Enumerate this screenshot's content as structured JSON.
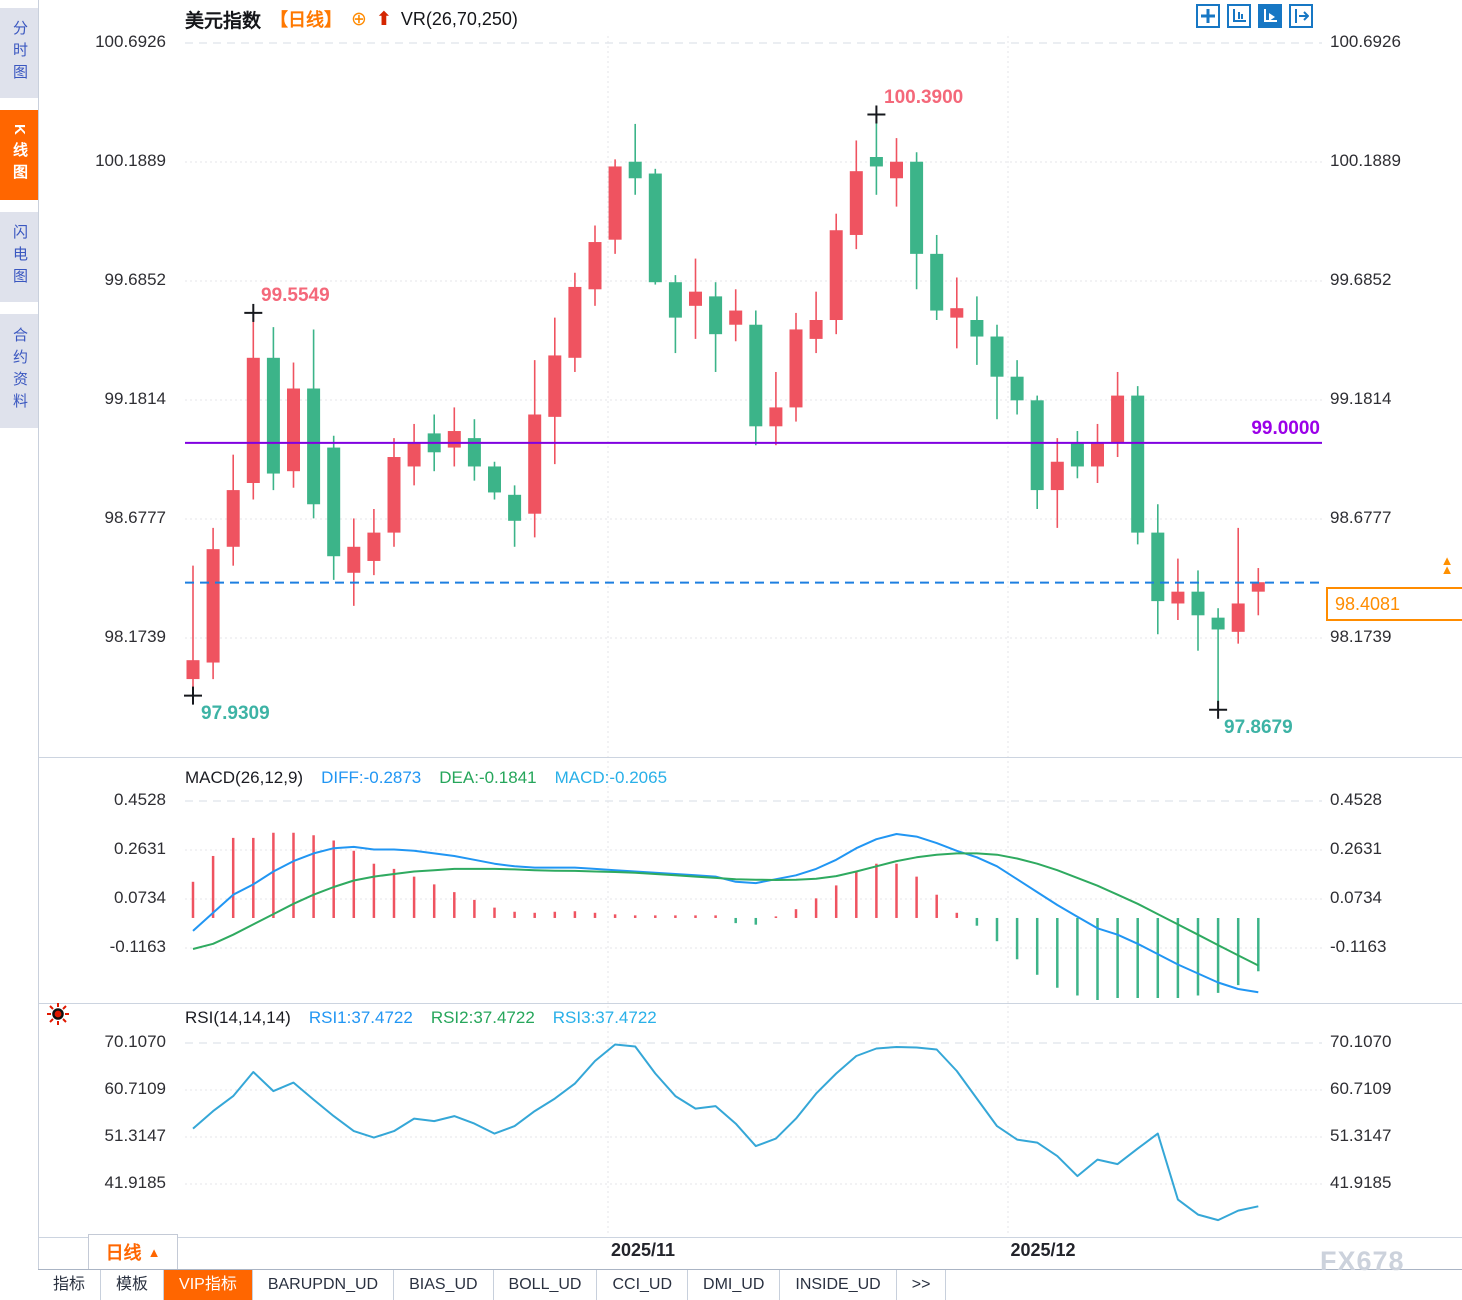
{
  "sidebar": {
    "tabs": [
      {
        "label": "分时图",
        "active": false
      },
      {
        "label": "K线图",
        "active": true
      },
      {
        "label": "闪电图",
        "active": false
      },
      {
        "label": "合约资料",
        "active": false
      }
    ]
  },
  "header": {
    "symbol": "美元指数",
    "period": "【日线】",
    "compare_icon": "⊕",
    "up_arrow_icon": "⬆",
    "indicator": "VR(26,70,250)"
  },
  "toolbar": {
    "icons": [
      "crosshair-icon",
      "axis-scale-icon",
      "axis-play-icon",
      "pan-right-icon"
    ],
    "active_index": 2
  },
  "main_chart": {
    "y_ticks": [
      "100.6926",
      "100.1889",
      "99.6852",
      "99.1814",
      "98.6777",
      "98.1739"
    ],
    "annotations": {
      "high_early": "99.5549",
      "high_peak": "100.3900",
      "low_early": "97.9309",
      "low_late": "97.8679",
      "support_line": "99.0000",
      "last_price": "98.4081"
    }
  },
  "macd_panel": {
    "title": "MACD(26,12,9)",
    "diff_label": "DIFF:-0.2873",
    "dea_label": "DEA:-0.1841",
    "macd_label": "MACD:-0.2065",
    "y_ticks": [
      "0.4528",
      "0.2631",
      "0.0734",
      "-0.1163"
    ]
  },
  "rsi_panel": {
    "title": "RSI(14,14,14)",
    "rsi1_label": "RSI1:37.4722",
    "rsi2_label": "RSI2:37.4722",
    "rsi3_label": "RSI3:37.4722",
    "y_ticks": [
      "70.1070",
      "60.7109",
      "51.3147",
      "41.9185"
    ]
  },
  "x_axis": {
    "labels": [
      "2025/11",
      "2025/12"
    ]
  },
  "footer": {
    "period_button": "日线",
    "period_arrow": "▲",
    "tabs": [
      {
        "label": "指标",
        "active": false
      },
      {
        "label": "模板",
        "active": false
      },
      {
        "label": "VIP指标",
        "active": true
      },
      {
        "label": "BARUPDN_UD",
        "active": false
      },
      {
        "label": "BIAS_UD",
        "active": false
      },
      {
        "label": "BOLL_UD",
        "active": false
      },
      {
        "label": "CCI_UD",
        "active": false
      },
      {
        "label": "DMI_UD",
        "active": false
      },
      {
        "label": "INSIDE_UD",
        "active": false
      },
      {
        "label": ">>",
        "active": false
      }
    ],
    "watermark": "FX678"
  },
  "colors": {
    "up": "#ef5360",
    "down": "#3cb489",
    "diff_line": "#2196f3",
    "dea_line": "#2faa60",
    "rsi_line": "#35a7d7",
    "support_line": "#8000e0",
    "support_label": "#9b00e8",
    "last_price_line": "#1d7fe0",
    "accent_orange": "#ff6600",
    "annotation_high": "#f4687a",
    "annotation_low": "#3db3a5"
  },
  "chart_data": [
    {
      "type": "candlestick",
      "symbol": "美元指数",
      "period": "日线",
      "x_labels": [
        "2025/11",
        "2025/12"
      ],
      "y_ticks": [
        100.6926,
        100.1889,
        99.6852,
        99.1814,
        98.6777,
        98.1739
      ],
      "hlines": [
        {
          "value": 99.0,
          "style": "solid",
          "label": "99.0000"
        },
        {
          "value": 98.4081,
          "style": "dashed",
          "label": "98.4081"
        }
      ],
      "markers": [
        {
          "index": 3,
          "price": 99.55,
          "label": "99.5549",
          "kind": "high"
        },
        {
          "index": 34,
          "price": 100.39,
          "label": "100.3900",
          "kind": "high"
        },
        {
          "index": 0,
          "price": 97.93,
          "label": "97.9309",
          "kind": "low"
        },
        {
          "index": 51,
          "price": 97.87,
          "label": "97.8679",
          "kind": "low"
        }
      ],
      "candles_ohlc": [
        [
          98.0,
          98.48,
          97.93,
          98.08
        ],
        [
          98.07,
          98.64,
          98.0,
          98.55
        ],
        [
          98.56,
          98.95,
          98.48,
          98.8
        ],
        [
          98.83,
          99.55,
          98.76,
          99.36
        ],
        [
          99.36,
          99.49,
          98.8,
          98.87
        ],
        [
          98.88,
          99.34,
          98.81,
          99.23
        ],
        [
          99.23,
          99.48,
          98.68,
          98.74
        ],
        [
          98.98,
          99.03,
          98.42,
          98.52
        ],
        [
          98.45,
          98.68,
          98.31,
          98.56
        ],
        [
          98.5,
          98.72,
          98.44,
          98.62
        ],
        [
          98.62,
          99.02,
          98.56,
          98.94
        ],
        [
          98.9,
          99.08,
          98.82,
          99.0
        ],
        [
          99.04,
          99.12,
          98.88,
          98.96
        ],
        [
          98.98,
          99.15,
          98.9,
          99.05
        ],
        [
          99.02,
          99.1,
          98.84,
          98.9
        ],
        [
          98.9,
          98.92,
          98.76,
          98.79
        ],
        [
          98.78,
          98.82,
          98.56,
          98.67
        ],
        [
          98.7,
          99.35,
          98.6,
          99.12
        ],
        [
          99.11,
          99.53,
          98.91,
          99.37
        ],
        [
          99.36,
          99.72,
          99.3,
          99.66
        ],
        [
          99.65,
          99.92,
          99.58,
          99.85
        ],
        [
          99.86,
          100.2,
          99.8,
          100.17
        ],
        [
          100.19,
          100.35,
          100.05,
          100.12
        ],
        [
          100.14,
          100.16,
          99.67,
          99.68
        ],
        [
          99.68,
          99.71,
          99.38,
          99.53
        ],
        [
          99.58,
          99.78,
          99.44,
          99.64
        ],
        [
          99.62,
          99.68,
          99.3,
          99.46
        ],
        [
          99.5,
          99.65,
          99.43,
          99.56
        ],
        [
          99.5,
          99.56,
          98.99,
          99.07
        ],
        [
          99.07,
          99.3,
          98.99,
          99.15
        ],
        [
          99.15,
          99.55,
          99.09,
          99.48
        ],
        [
          99.44,
          99.64,
          99.38,
          99.52
        ],
        [
          99.52,
          99.97,
          99.46,
          99.9
        ],
        [
          99.88,
          100.28,
          99.82,
          100.15
        ],
        [
          100.21,
          100.39,
          100.05,
          100.17
        ],
        [
          100.12,
          100.29,
          100.0,
          100.19
        ],
        [
          100.19,
          100.23,
          99.65,
          99.8
        ],
        [
          99.8,
          99.88,
          99.52,
          99.56
        ],
        [
          99.53,
          99.7,
          99.4,
          99.57
        ],
        [
          99.52,
          99.62,
          99.33,
          99.45
        ],
        [
          99.45,
          99.5,
          99.1,
          99.28
        ],
        [
          99.28,
          99.35,
          99.12,
          99.18
        ],
        [
          99.18,
          99.2,
          98.72,
          98.8
        ],
        [
          98.8,
          99.02,
          98.64,
          98.92
        ],
        [
          99.0,
          99.05,
          98.85,
          98.9
        ],
        [
          98.9,
          99.08,
          98.83,
          99.0
        ],
        [
          99.0,
          99.3,
          98.94,
          99.2
        ],
        [
          99.2,
          99.24,
          98.57,
          98.62
        ],
        [
          98.62,
          98.74,
          98.19,
          98.33
        ],
        [
          98.32,
          98.51,
          98.25,
          98.37
        ],
        [
          98.37,
          98.46,
          98.12,
          98.27
        ],
        [
          98.26,
          98.3,
          97.87,
          98.21
        ],
        [
          98.2,
          98.64,
          98.15,
          98.32
        ],
        [
          98.37,
          98.47,
          98.27,
          98.41
        ]
      ]
    },
    {
      "type": "bar",
      "name": "MACD(26,12,9)",
      "values_note": "histogram = 2*(DIFF-DEA); red above 0, green below 0",
      "y_ticks": [
        0.4528,
        0.2631,
        0.0734,
        -0.1163
      ],
      "end_values": {
        "DIFF": -0.2873,
        "DEA": -0.1841,
        "MACD": -0.2065
      },
      "series": [
        {
          "name": "DIFF",
          "values": [
            -0.05,
            0.02,
            0.09,
            0.13,
            0.18,
            0.22,
            0.25,
            0.27,
            0.275,
            0.265,
            0.265,
            0.26,
            0.25,
            0.24,
            0.225,
            0.21,
            0.2,
            0.195,
            0.195,
            0.195,
            0.19,
            0.185,
            0.18,
            0.175,
            0.17,
            0.165,
            0.16,
            0.14,
            0.135,
            0.15,
            0.165,
            0.19,
            0.225,
            0.27,
            0.305,
            0.325,
            0.315,
            0.29,
            0.26,
            0.235,
            0.2,
            0.15,
            0.1,
            0.05,
            0.005,
            -0.04,
            -0.065,
            -0.1,
            -0.14,
            -0.18,
            -0.215,
            -0.25,
            -0.275,
            -0.2873
          ]
        },
        {
          "name": "DEA",
          "values": [
            -0.12,
            -0.1,
            -0.065,
            -0.025,
            0.015,
            0.055,
            0.09,
            0.12,
            0.145,
            0.16,
            0.17,
            0.18,
            0.185,
            0.19,
            0.19,
            0.19,
            0.188,
            0.185,
            0.183,
            0.182,
            0.18,
            0.178,
            0.175,
            0.17,
            0.165,
            0.16,
            0.155,
            0.15,
            0.148,
            0.147,
            0.148,
            0.152,
            0.162,
            0.18,
            0.2,
            0.22,
            0.235,
            0.245,
            0.25,
            0.25,
            0.245,
            0.23,
            0.21,
            0.185,
            0.155,
            0.125,
            0.09,
            0.055,
            0.015,
            -0.025,
            -0.065,
            -0.105,
            -0.145,
            -0.1841
          ]
        }
      ]
    },
    {
      "type": "line",
      "name": "RSI(14,14,14)",
      "y_ticks": [
        70.107,
        60.7109,
        51.3147,
        41.9185
      ],
      "end_value": 37.4722,
      "series": [
        {
          "name": "RSI1",
          "values": [
            53.0,
            56.5,
            59.5,
            64.3,
            60.5,
            62.2,
            58.8,
            55.5,
            52.5,
            51.2,
            52.5,
            55.0,
            54.5,
            55.5,
            54.0,
            52.0,
            53.5,
            56.5,
            59.0,
            62.0,
            66.5,
            69.8,
            69.4,
            64.0,
            59.5,
            57.0,
            57.5,
            54.0,
            49.5,
            51.0,
            55.0,
            60.0,
            64.0,
            67.5,
            69.0,
            69.3,
            69.2,
            68.8,
            64.5,
            59.0,
            53.5,
            50.8,
            50.2,
            47.5,
            43.5,
            46.8,
            45.9,
            49.0,
            52.0,
            38.8,
            35.8,
            34.7,
            36.6,
            37.47
          ]
        }
      ]
    }
  ]
}
